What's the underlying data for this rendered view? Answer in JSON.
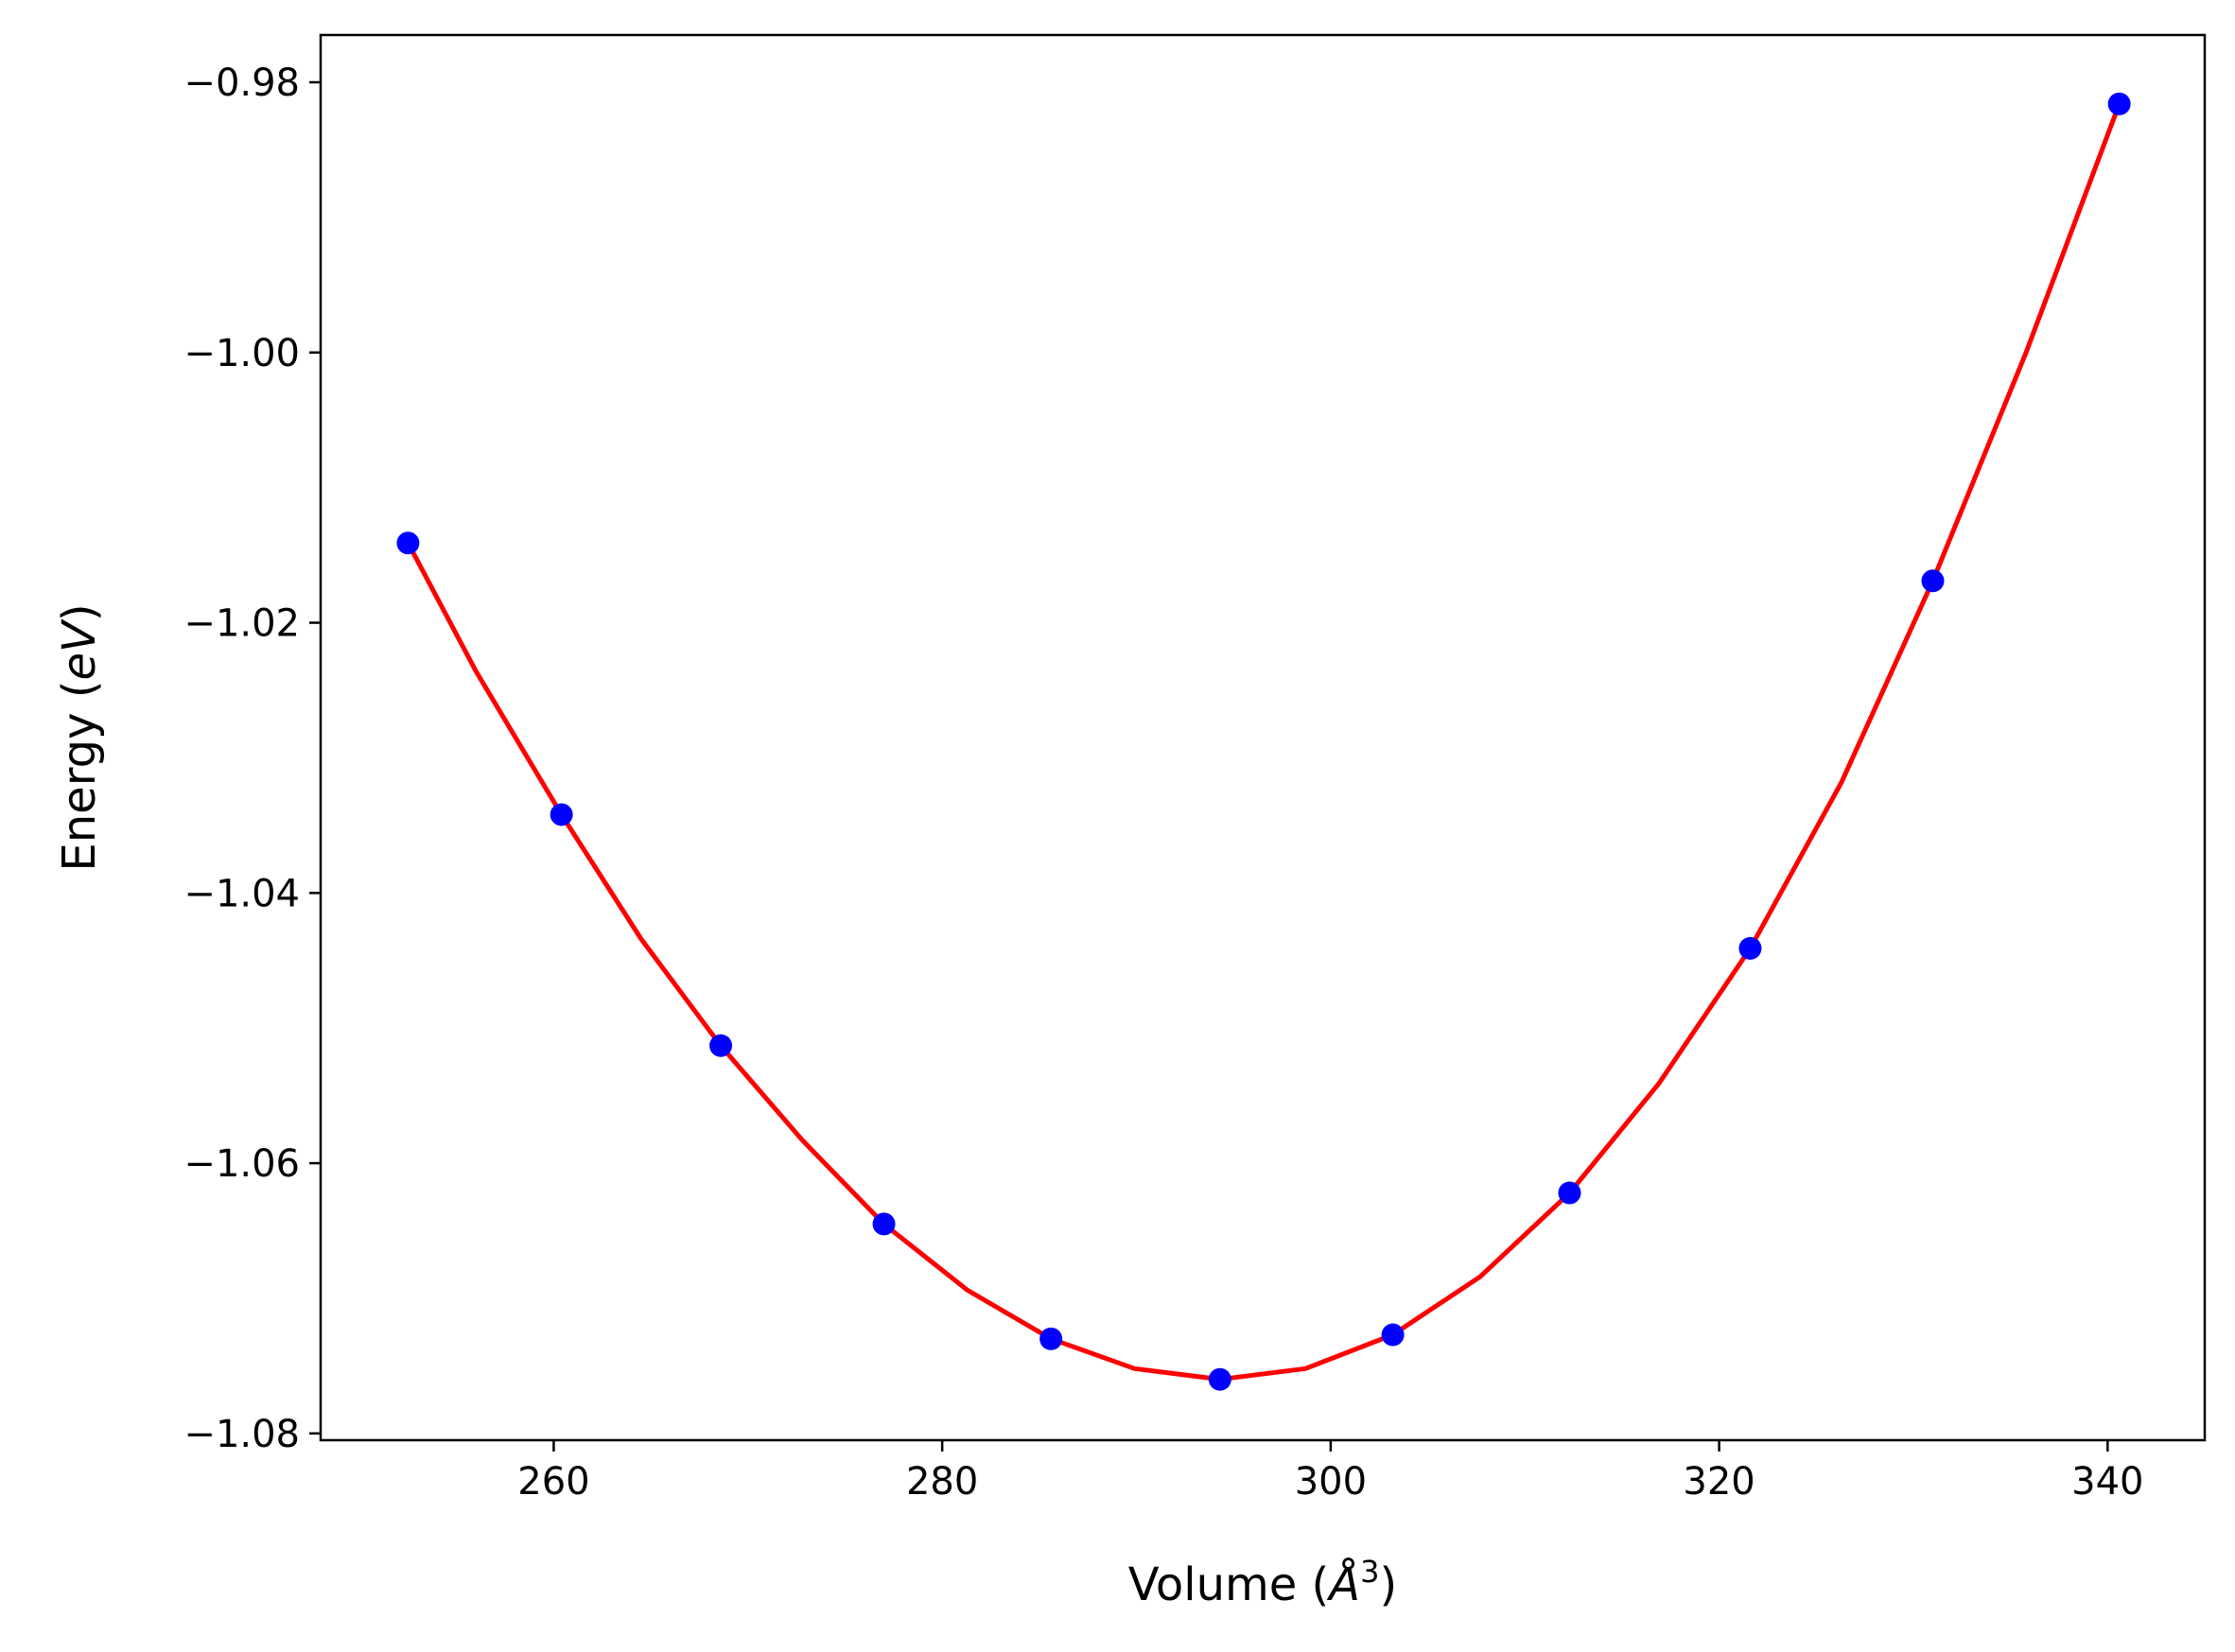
{
  "chart_data": {
    "type": "scatter",
    "title": "",
    "xlabel": "Volume (Å³)",
    "ylabel": "Energy (eV)",
    "xlabel_parts": {
      "prefix": "Volume (",
      "symbol": "Å",
      "exponent": "3",
      "suffix": ")"
    },
    "ylabel_parts": {
      "prefix": "Energy (",
      "italic": "eV",
      "suffix": ")"
    },
    "xlim": [
      248,
      345
    ],
    "ylim": [
      -1.0805,
      -0.9765
    ],
    "xticks": [
      260,
      280,
      300,
      320,
      340
    ],
    "xtick_labels": [
      "260",
      "280",
      "300",
      "320",
      "340"
    ],
    "yticks": [
      -0.98,
      -1.0,
      -1.02,
      -1.04,
      -1.06,
      -1.08
    ],
    "ytick_labels": [
      "−0.98",
      "−1.00",
      "−1.02",
      "−1.04",
      "−1.06",
      "−1.08"
    ],
    "grid": false,
    "series": [
      {
        "kind": "scatter",
        "color": "#0000ff",
        "x": [
          252.5,
          260.4,
          268.6,
          277.0,
          285.6,
          294.3,
          303.2,
          312.3,
          321.6,
          331.0,
          340.6
        ],
        "y": [
          -1.0141,
          -1.0342,
          -1.0513,
          -1.0645,
          -1.073,
          -1.076,
          -1.0727,
          -1.0622,
          -1.0441,
          -1.0169,
          -0.9816
        ]
      },
      {
        "kind": "line",
        "color": "#ff0000",
        "x": [
          252.5,
          256.0,
          260.4,
          264.5,
          268.6,
          272.8,
          277.0,
          281.3,
          285.6,
          289.9,
          294.3,
          298.7,
          303.2,
          307.7,
          312.3,
          316.9,
          321.6,
          326.3,
          331.0,
          335.8,
          340.6
        ],
        "y": [
          -1.0141,
          -1.0236,
          -1.0342,
          -1.0434,
          -1.0513,
          -1.0583,
          -1.0645,
          -1.0694,
          -1.073,
          -1.0752,
          -1.076,
          -1.0752,
          -1.0727,
          -1.0684,
          -1.0622,
          -1.0541,
          -1.0441,
          -1.0318,
          -1.0169,
          -1.0,
          -0.9816
        ]
      }
    ]
  }
}
